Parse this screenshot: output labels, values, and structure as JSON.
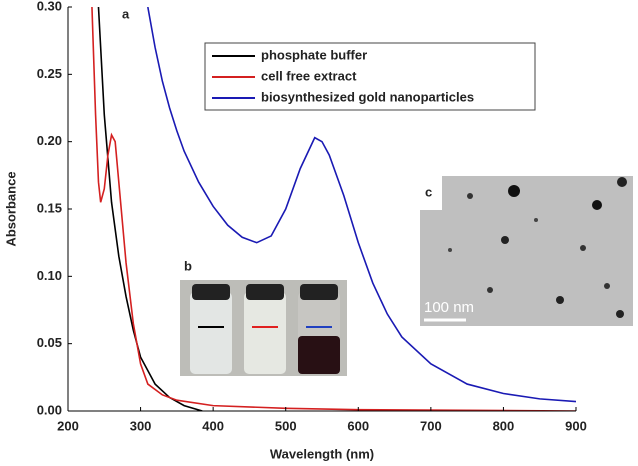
{
  "chart_data": {
    "type": "line",
    "x_label": "Wavelength (nm)",
    "y_label": "Absorbance",
    "xlim": [
      200,
      900
    ],
    "xticks": [
      200,
      300,
      400,
      500,
      600,
      700,
      800,
      900
    ],
    "ylim": [
      0,
      0.3
    ],
    "yticks": [
      {
        "value": 0,
        "label": "0.00"
      },
      {
        "value": 0.05,
        "label": "0.05"
      },
      {
        "value": 0.1,
        "label": "0.10"
      },
      {
        "value": 0.15,
        "label": "0.15"
      },
      {
        "value": 0.2,
        "label": "0.20"
      },
      {
        "value": 0.25,
        "label": "0.25"
      },
      {
        "value": 0.3,
        "label": "0.30"
      }
    ],
    "legend": "top-right",
    "annotations": [
      "a",
      "b",
      "c",
      "100 nm"
    ],
    "series": [
      {
        "name": "phosphate buffer",
        "color": "#000000",
        "x": [
          242,
          250,
          260,
          270,
          280,
          290,
          300,
          320,
          340,
          360,
          385
        ],
        "values": [
          0.3,
          0.22,
          0.155,
          0.115,
          0.085,
          0.06,
          0.04,
          0.02,
          0.01,
          0.004,
          0
        ]
      },
      {
        "name": "cell free extract",
        "color": "#d42020",
        "x": [
          233,
          238,
          242,
          245,
          250,
          255,
          260,
          265,
          270,
          275,
          280,
          290,
          300,
          310,
          330,
          350,
          400,
          500,
          600,
          900
        ],
        "values": [
          0.3,
          0.22,
          0.17,
          0.155,
          0.165,
          0.19,
          0.205,
          0.2,
          0.17,
          0.14,
          0.11,
          0.065,
          0.035,
          0.02,
          0.012,
          0.008,
          0.004,
          0.002,
          0.001,
          0
        ]
      },
      {
        "name": "biosynthesized gold nanoparticles",
        "color": "#1a1ab4",
        "x": [
          310,
          320,
          330,
          340,
          350,
          360,
          380,
          400,
          420,
          440,
          460,
          480,
          500,
          520,
          540,
          550,
          560,
          580,
          600,
          620,
          640,
          660,
          700,
          750,
          800,
          850,
          900
        ],
        "values": [
          0.3,
          0.27,
          0.245,
          0.225,
          0.208,
          0.193,
          0.17,
          0.152,
          0.138,
          0.129,
          0.125,
          0.13,
          0.15,
          0.18,
          0.203,
          0.2,
          0.19,
          0.16,
          0.125,
          0.095,
          0.072,
          0.055,
          0.035,
          0.02,
          0.013,
          0.009,
          0.007
        ]
      }
    ]
  }
}
